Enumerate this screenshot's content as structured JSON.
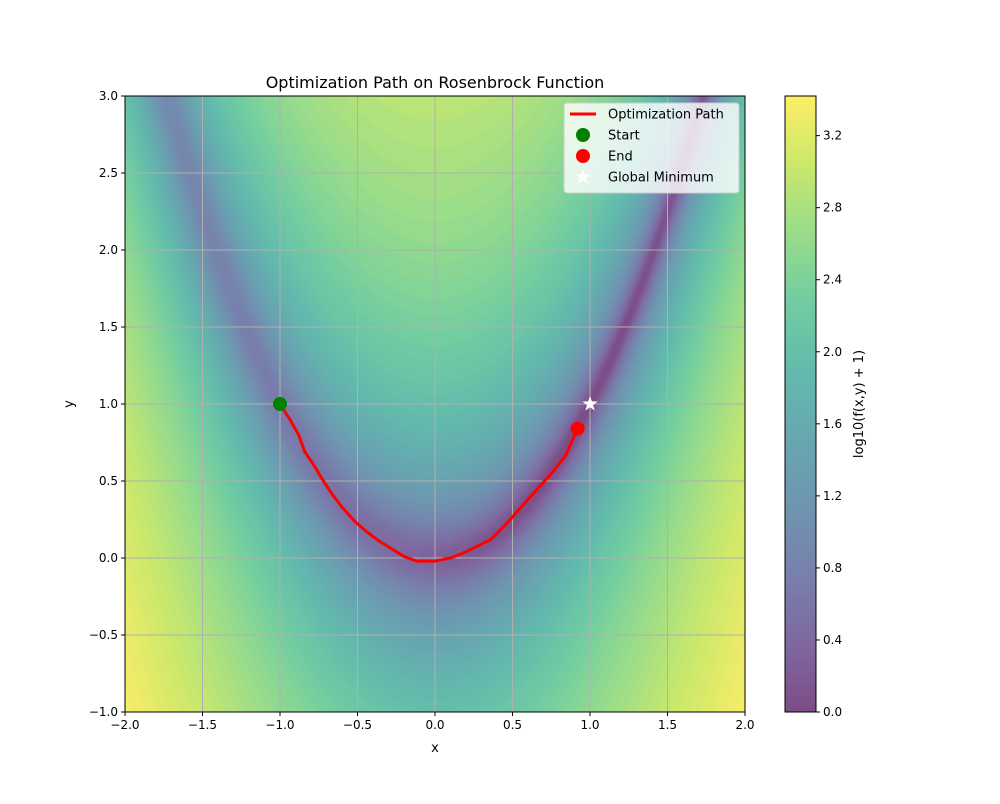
{
  "chart_data": {
    "type": "contour",
    "title": "Optimization Path on Rosenbrock Function",
    "xlabel": "x",
    "ylabel": "y",
    "xlim": [
      -2.0,
      2.0
    ],
    "ylim": [
      -1.0,
      3.0
    ],
    "xticks": [
      -2.0,
      -1.5,
      -1.0,
      -0.5,
      0.0,
      0.5,
      1.0,
      1.5,
      2.0
    ],
    "xtick_labels": [
      "−2.0",
      "−1.5",
      "−1.0",
      "−0.5",
      "0.0",
      "0.5",
      "1.0",
      "1.5",
      "2.0"
    ],
    "yticks": [
      -1.0,
      -0.5,
      0.0,
      0.5,
      1.0,
      1.5,
      2.0,
      2.5,
      3.0
    ],
    "ytick_labels": [
      "−1.0",
      "−0.5",
      "0.0",
      "0.5",
      "1.0",
      "1.5",
      "2.0",
      "2.5",
      "3.0"
    ],
    "grid": true,
    "surface": {
      "function": "rosenbrock",
      "z_transform": "log10(f(x,y) + 1)",
      "colormap": "viridis",
      "alpha": 0.7
    },
    "colorbar": {
      "label": "log10(f(x,y) + 1)",
      "range": [
        0.0,
        3.42
      ],
      "ticks": [
        0.0,
        0.4,
        0.8,
        1.2,
        1.6,
        2.0,
        2.4,
        2.8,
        3.2
      ],
      "tick_labels": [
        "0.0",
        "0.4",
        "0.8",
        "1.2",
        "1.6",
        "2.0",
        "2.4",
        "2.8",
        "3.2"
      ]
    },
    "series": [
      {
        "name": "Optimization Path",
        "type": "line",
        "color": "#ff0000",
        "x": [
          -1.0,
          -0.93,
          -0.88,
          -0.84,
          -0.78,
          -0.72,
          -0.66,
          -0.6,
          -0.52,
          -0.44,
          -0.36,
          -0.28,
          -0.2,
          -0.12,
          0.0,
          0.1,
          0.2,
          0.28,
          0.36,
          0.44,
          0.52,
          0.6,
          0.68,
          0.76,
          0.84,
          0.92
        ],
        "y": [
          1.0,
          0.89,
          0.8,
          0.69,
          0.6,
          0.5,
          0.41,
          0.33,
          0.24,
          0.17,
          0.11,
          0.06,
          0.01,
          -0.02,
          -0.02,
          0.0,
          0.04,
          0.08,
          0.12,
          0.2,
          0.29,
          0.38,
          0.47,
          0.56,
          0.66,
          0.84
        ]
      },
      {
        "name": "Start",
        "type": "scatter",
        "color": "#008000",
        "x": [
          -1.0
        ],
        "y": [
          1.0
        ]
      },
      {
        "name": "End",
        "type": "scatter",
        "color": "#ff0000",
        "x": [
          0.92
        ],
        "y": [
          0.84
        ]
      },
      {
        "name": "Global Minimum",
        "type": "scatter",
        "marker": "star",
        "color": "#ffffff",
        "x": [
          1.0
        ],
        "y": [
          1.0
        ]
      }
    ],
    "legend_position": "upper-right"
  }
}
